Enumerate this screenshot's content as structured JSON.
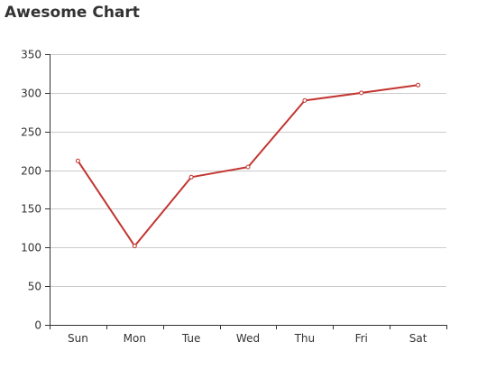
{
  "chart_data": {
    "type": "line",
    "title": "Awesome Chart",
    "categories": [
      "Sun",
      "Mon",
      "Tue",
      "Wed",
      "Thu",
      "Fri",
      "Sat"
    ],
    "series": [
      {
        "values": [
          212,
          102,
          191,
          204,
          290,
          300,
          310
        ],
        "color": "#c23531"
      }
    ],
    "ylim": [
      0,
      350
    ],
    "yticks": [
      0,
      50,
      100,
      150,
      200,
      250,
      300,
      350
    ],
    "grid": true,
    "xlabel": "",
    "ylabel": ""
  },
  "colors": {
    "series": "#c23531",
    "grid": "#cccccc",
    "axis": "#333333",
    "text": "#333333"
  }
}
